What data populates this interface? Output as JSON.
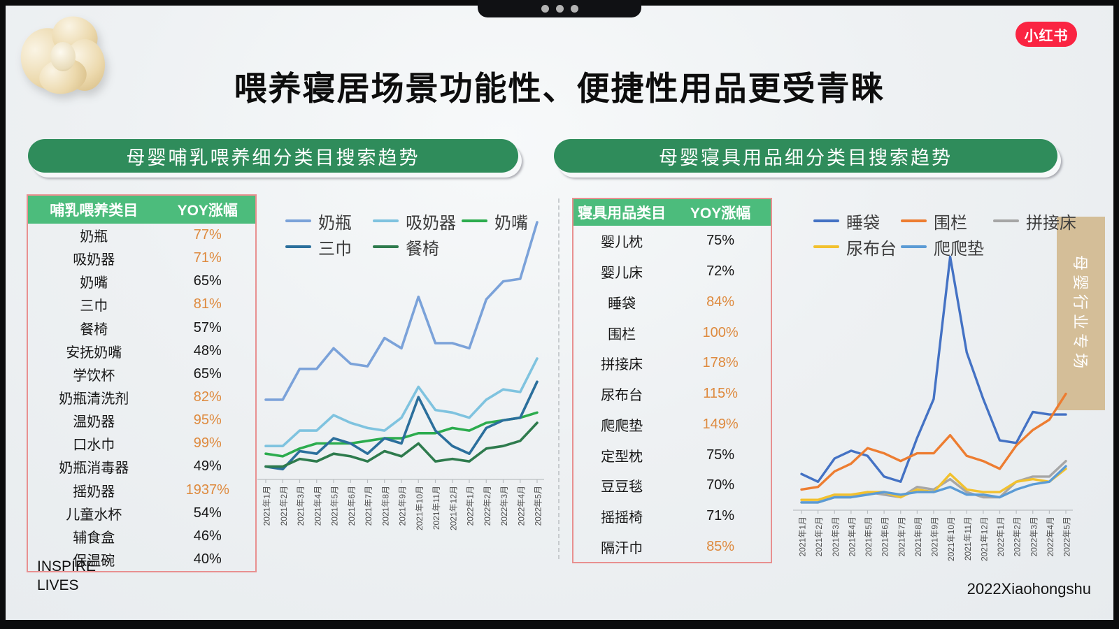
{
  "title": "喂养寝居场景功能性、便捷性用品更受青睐",
  "badges": {
    "xiaohongshu": "小红书"
  },
  "side_banner": "母婴行业专场",
  "footer": {
    "line1": "INSPIRE",
    "line2": "LIVES",
    "right": "2022Xiaohongshu"
  },
  "colors": {
    "pill_green": "#2f8c5b",
    "table_header_green": "#4cbc7c",
    "table_border_pink": "#e89090",
    "highlight_orange": "#de8a3e",
    "banner_tan": "#d4be98",
    "badge_red": "#fa2442"
  },
  "left_panel": {
    "header": "母婴哺乳喂养细分类目搜索趋势",
    "table": {
      "columns": [
        "哺乳喂养类目",
        "YOY涨幅"
      ],
      "rows": [
        {
          "label": "奶瓶",
          "value": "77%",
          "highlight": true
        },
        {
          "label": "吸奶器",
          "value": "71%",
          "highlight": true
        },
        {
          "label": "奶嘴",
          "value": "65%",
          "highlight": false
        },
        {
          "label": "三巾",
          "value": "81%",
          "highlight": true
        },
        {
          "label": "餐椅",
          "value": "57%",
          "highlight": false
        },
        {
          "label": "安抚奶嘴",
          "value": "48%",
          "highlight": false
        },
        {
          "label": "学饮杯",
          "value": "65%",
          "highlight": false
        },
        {
          "label": "奶瓶清洗剂",
          "value": "82%",
          "highlight": true
        },
        {
          "label": "温奶器",
          "value": "95%",
          "highlight": true
        },
        {
          "label": "口水巾",
          "value": "99%",
          "highlight": true
        },
        {
          "label": "奶瓶消毒器",
          "value": "49%",
          "highlight": false
        },
        {
          "label": "摇奶器",
          "value": "1937%",
          "highlight": true
        },
        {
          "label": "儿童水杯",
          "value": "54%",
          "highlight": false
        },
        {
          "label": "辅食盒",
          "value": "46%",
          "highlight": false
        },
        {
          "label": "保温碗",
          "value": "40%",
          "highlight": false
        }
      ]
    }
  },
  "right_panel": {
    "header": "母婴寝具用品细分类目搜索趋势",
    "table": {
      "columns": [
        "寝具用品类目",
        "YOY涨幅"
      ],
      "rows": [
        {
          "label": "婴儿枕",
          "value": "75%",
          "highlight": false
        },
        {
          "label": "婴儿床",
          "value": "72%",
          "highlight": false
        },
        {
          "label": "睡袋",
          "value": "84%",
          "highlight": true
        },
        {
          "label": "围栏",
          "value": "100%",
          "highlight": true
        },
        {
          "label": "拼接床",
          "value": "178%",
          "highlight": true
        },
        {
          "label": "尿布台",
          "value": "115%",
          "highlight": true
        },
        {
          "label": "爬爬垫",
          "value": "149%",
          "highlight": true
        },
        {
          "label": "定型枕",
          "value": "75%",
          "highlight": false
        },
        {
          "label": "豆豆毯",
          "value": "70%",
          "highlight": false
        },
        {
          "label": "摇摇椅",
          "value": "71%",
          "highlight": false
        },
        {
          "label": "隔汗巾",
          "value": "85%",
          "highlight": true
        }
      ]
    }
  },
  "chart_data": [
    {
      "type": "line",
      "title": "母婴哺乳喂养细分类目搜索趋势",
      "x": [
        "2021年1月",
        "2021年2月",
        "2021年3月",
        "2021年4月",
        "2021年5月",
        "2021年6月",
        "2021年7月",
        "2021年8月",
        "2021年9月",
        "2021年10月",
        "2021年11月",
        "2021年12月",
        "2022年1月",
        "2022年2月",
        "2022年3月",
        "2022年4月",
        "2022年5月"
      ],
      "ylim": [
        0,
        100
      ],
      "grid": false,
      "legend_position": "top",
      "y_axis_visible": false,
      "note": "y values are relative search-index estimates read from line positions",
      "series": [
        {
          "name": "奶瓶",
          "color": "#7ba2d9",
          "values": [
            31,
            31,
            43,
            43,
            51,
            45,
            44,
            55,
            51,
            71,
            53,
            53,
            51,
            70,
            77,
            78,
            100
          ]
        },
        {
          "name": "吸奶器",
          "color": "#7fc3df",
          "values": [
            13,
            13,
            19,
            19,
            25,
            22,
            20,
            19,
            24,
            36,
            27,
            26,
            24,
            31,
            35,
            34,
            47
          ]
        },
        {
          "name": "奶嘴",
          "color": "#2cac4e",
          "values": [
            10,
            9,
            12,
            14,
            14,
            14,
            15,
            16,
            16,
            18,
            18,
            20,
            19,
            22,
            23,
            24,
            26
          ]
        },
        {
          "name": "三巾",
          "color": "#2b6f9c",
          "values": [
            5,
            4,
            11,
            10,
            16,
            14,
            10,
            16,
            14,
            32,
            19,
            13,
            10,
            20,
            23,
            24,
            38
          ]
        },
        {
          "name": "餐椅",
          "color": "#2e7b4d",
          "values": [
            5,
            5,
            8,
            7,
            10,
            9,
            7,
            11,
            9,
            14,
            7,
            8,
            7,
            12,
            13,
            15,
            22
          ]
        }
      ]
    },
    {
      "type": "line",
      "title": "母婴寝具用品细分类目搜索趋势",
      "x": [
        "2021年1月",
        "2021年2月",
        "2021年3月",
        "2021年4月",
        "2021年5月",
        "2021年6月",
        "2021年7月",
        "2021年8月",
        "2021年9月",
        "2021年10月",
        "2021年11月",
        "2021年12月",
        "2022年1月",
        "2022年2月",
        "2022年3月",
        "2022年4月",
        "2022年5月"
      ],
      "ylim": [
        0,
        100
      ],
      "grid": false,
      "legend_position": "top",
      "y_axis_visible": false,
      "note": "y values are relative search-index estimates read from line positions",
      "series": [
        {
          "name": "睡袋",
          "color": "#4472c4",
          "values": [
            14,
            11,
            20,
            23,
            21,
            13,
            11,
            28,
            43,
            98,
            61,
            43,
            27,
            26,
            38,
            37,
            37
          ]
        },
        {
          "name": "围栏",
          "color": "#ed7d31",
          "values": [
            8,
            9,
            15,
            18,
            24,
            22,
            19,
            22,
            22,
            29,
            21,
            19,
            16,
            25,
            31,
            35,
            45
          ]
        },
        {
          "name": "拼接床",
          "color": "#a6a6a6",
          "values": [
            3,
            3,
            5,
            5,
            7,
            6,
            5,
            9,
            8,
            12,
            7,
            5,
            5,
            11,
            13,
            13,
            19
          ]
        },
        {
          "name": "尿布台",
          "color": "#f2c12e",
          "values": [
            4,
            4,
            6,
            6,
            7,
            7,
            5,
            8,
            7,
            14,
            8,
            7,
            7,
            11,
            12,
            11,
            16
          ]
        },
        {
          "name": "爬爬垫",
          "color": "#5b9bd5",
          "values": [
            3,
            3,
            5,
            5,
            6,
            7,
            6,
            7,
            7,
            9,
            6,
            6,
            5,
            8,
            10,
            11,
            17
          ]
        }
      ]
    }
  ]
}
